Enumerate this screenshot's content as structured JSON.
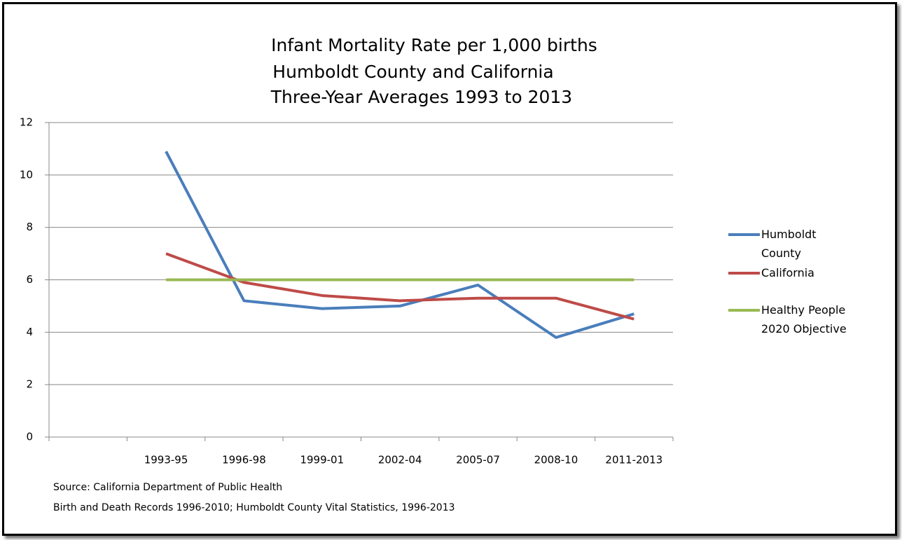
{
  "chart_data": {
    "type": "line",
    "title": [
      "Infant Mortality Rate per 1,000 births",
      "Humboldt County and California",
      "Three-Year Averages 1993 to 2013"
    ],
    "categories": [
      null,
      "1993-95",
      "1996-98",
      "1999-01",
      "2002-04",
      "2005-07",
      "2008-10",
      "2011-2013"
    ],
    "series": [
      {
        "name": "Humboldt County",
        "color": "#4a7ebb",
        "values": [
          null,
          10.9,
          5.2,
          4.9,
          5.0,
          5.8,
          3.8,
          4.7
        ]
      },
      {
        "name": "California",
        "color": "#be4b48",
        "values": [
          null,
          7.0,
          5.9,
          5.4,
          5.2,
          5.3,
          5.3,
          4.5
        ]
      },
      {
        "name": "Healthy People 2020 Objective",
        "color": "#98b954",
        "values": [
          null,
          6,
          6,
          6,
          6,
          6,
          6,
          6
        ]
      }
    ],
    "ylim": [
      0,
      12
    ],
    "yticks": [
      0,
      2,
      4,
      6,
      8,
      10,
      12
    ],
    "grid": true,
    "legend": "right",
    "notes": [
      "Source: California Department of Public Health",
      "Birth and Death Records 1996-2010; Humboldt County Vital Statistics, 1996-2013"
    ]
  }
}
